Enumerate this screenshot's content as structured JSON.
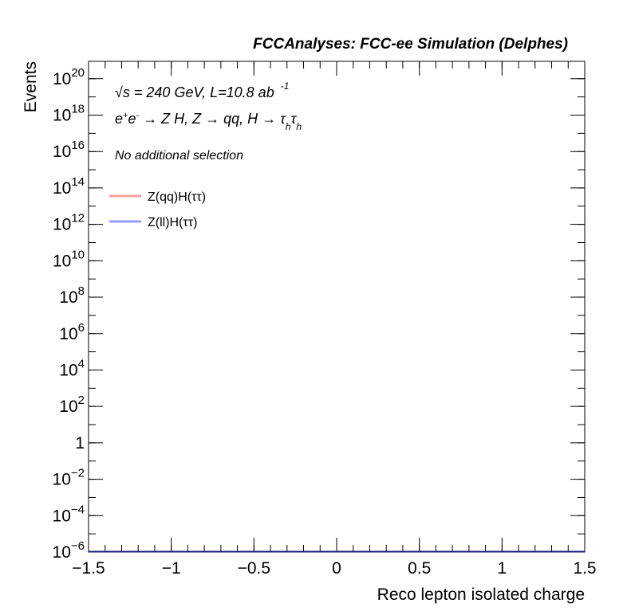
{
  "chart_data": {
    "type": "step",
    "title": "FCCAnalyses: FCC-ee Simulation (Delphes)",
    "annotations": [
      [
        "√",
        "s = 240 GeV, L=10.8 ab",
        "-1"
      ],
      [
        "e",
        "+",
        "e",
        "-",
        " → Z H, Z  → qq, H  → τ",
        "h",
        "τ",
        "h"
      ],
      [
        "No additional selection"
      ]
    ],
    "xlabel": "Reco lepton isolated charge",
    "ylabel": "Events",
    "log_y": true,
    "xlim": [
      -1.5,
      1.5
    ],
    "ylim": [
      1e-06,
      9e+20
    ],
    "xticks": [
      {
        "value": -1.5,
        "label": "−1.5"
      },
      {
        "value": -1,
        "label": "−1"
      },
      {
        "value": -0.5,
        "label": "−0.5"
      },
      0,
      0.5,
      1,
      1.5
    ],
    "yticks": [
      {
        "value": 1e-06,
        "label": "10",
        "exponent": "−6"
      },
      {
        "value": 0.0001,
        "label": "10",
        "exponent": "−4"
      },
      {
        "value": 0.01,
        "label": "10",
        "exponent": "−2"
      },
      1,
      {
        "value": 100,
        "label": "10",
        "exponent": "2"
      },
      {
        "value": 10000.0,
        "label": "10",
        "exponent": "4"
      },
      {
        "value": 1000000.0,
        "label": "10",
        "exponent": "6"
      },
      {
        "value": 100000000.0,
        "label": "10",
        "exponent": "8"
      },
      {
        "value": 10000000000.0,
        "label": "10",
        "exponent": "10"
      },
      {
        "value": 1000000000000.0,
        "label": "10",
        "exponent": "12"
      },
      {
        "value": 100000000000000.0,
        "label": "10",
        "exponent": "14"
      },
      {
        "value": 1e+16,
        "label": "10",
        "exponent": "16"
      },
      {
        "value": 1e+18,
        "label": "10",
        "exponent": "18"
      },
      {
        "value": 1e+20,
        "label": "10",
        "exponent": "20"
      }
    ],
    "x": [
      -1.5,
      1.5
    ],
    "series": [
      {
        "name": "Z(qq)H(ττ)",
        "color": "#f4a0a0",
        "values": [
          1e-06,
          1e-06
        ]
      },
      {
        "name": "Z(ll)H(ττ)",
        "color": "#1a1a7a",
        "legend_color": "#9999ff",
        "values": [
          1e-06,
          1e-06
        ]
      }
    ]
  }
}
